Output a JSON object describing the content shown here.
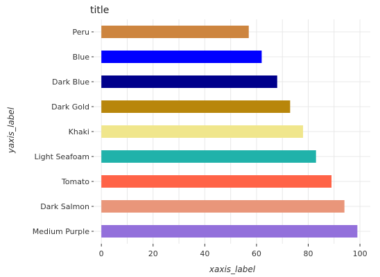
{
  "chart_data": {
    "type": "bar",
    "orientation": "horizontal",
    "title": "title",
    "xlabel": "xaxis_label",
    "ylabel": "yaxis_label",
    "categories": [
      "Peru",
      "Blue",
      "Dark Blue",
      "Dark Gold",
      "Khaki",
      "Light Seafoam",
      "Tomato",
      "Dark Salmon",
      "Medium Purple"
    ],
    "values": [
      57,
      62,
      68,
      73,
      78,
      83,
      89,
      94,
      99
    ],
    "colors": [
      "#cd853f",
      "#0000ff",
      "#00008b",
      "#b8860b",
      "#f0e68c",
      "#20b2aa",
      "#ff6347",
      "#e9967a",
      "#9370db"
    ],
    "xlim": [
      -3,
      104
    ],
    "xticks": [
      0,
      20,
      40,
      60,
      80,
      100
    ],
    "grid": true
  }
}
